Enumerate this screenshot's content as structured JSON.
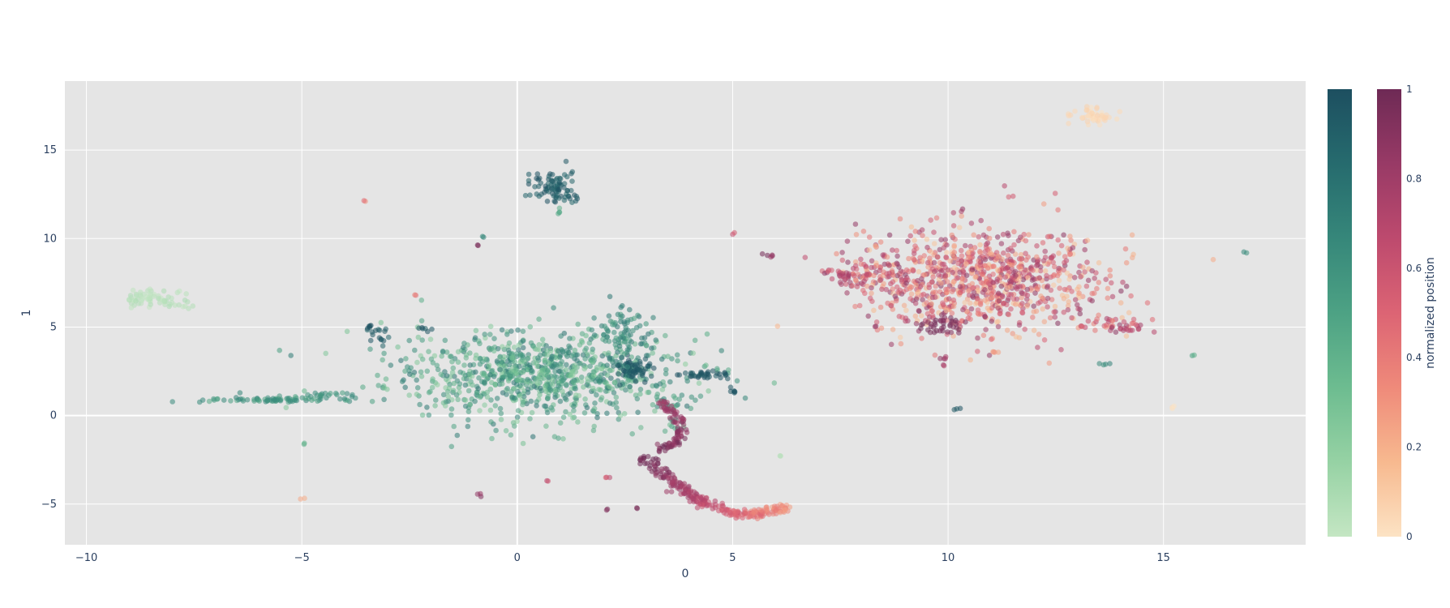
{
  "chart_data": {
    "type": "scatter",
    "title": "",
    "xlabel": "0",
    "ylabel": "1",
    "xlim": [
      -10.5,
      18.3
    ],
    "ylim": [
      -7.3,
      18.9
    ],
    "xticks": [
      -10,
      -5,
      0,
      5,
      10,
      15
    ],
    "yticks": [
      -5,
      0,
      5,
      10,
      15
    ],
    "grid": true,
    "plot_background": "#e5e5e5",
    "grid_color": "#ffffff",
    "series": [
      {
        "colorscale": [
          "#c4e6c3",
          "#96d2a4",
          "#6dbc90",
          "#4da284",
          "#36877a",
          "#266b6e",
          "#1d4f60"
        ],
        "clusters": [
          {
            "x": 0.4,
            "y": 2.3,
            "sx": 1.7,
            "sy": 1.2,
            "n": 900,
            "c": [
              0.2,
              0.8
            ]
          },
          {
            "x": 2.7,
            "y": 2.6,
            "sx": 0.25,
            "sy": 0.3,
            "n": 60,
            "c": [
              0.9,
              1.0
            ]
          },
          {
            "x": 2.5,
            "y": 4.8,
            "sx": 0.3,
            "sy": 0.8,
            "n": 80,
            "c": [
              0.5,
              0.8
            ]
          },
          {
            "x": 0.8,
            "y": 13.0,
            "sx": 0.25,
            "sy": 0.4,
            "n": 70,
            "c": [
              0.85,
              1.0
            ]
          },
          {
            "x": 1.1,
            "y": 12.3,
            "sx": 0.2,
            "sy": 0.15,
            "n": 15,
            "c": [
              0.85,
              1.0
            ]
          },
          {
            "x": -3.2,
            "y": 4.6,
            "sx": 0.15,
            "sy": 0.25,
            "n": 20,
            "c": [
              0.85,
              1.0
            ]
          },
          {
            "x": -2.1,
            "y": 4.9,
            "sx": 0.1,
            "sy": 0.1,
            "n": 6,
            "c": [
              0.85,
              1.0
            ]
          },
          {
            "x": 4.3,
            "y": 2.3,
            "sx": 0.35,
            "sy": 0.1,
            "n": 35,
            "c": [
              0.9,
              1.0
            ]
          },
          {
            "x": 3.5,
            "y": 0.6,
            "sx": 0.3,
            "sy": 0.25,
            "n": 25,
            "c": [
              0.4,
              0.7
            ]
          },
          {
            "x": -5.6,
            "y": 0.9,
            "sx": 0.8,
            "sy": 0.1,
            "n": 80,
            "c": [
              0.45,
              0.7
            ]
          },
          {
            "x": -4.5,
            "y": 1.2,
            "sx": 0.3,
            "sy": 0.06,
            "n": 15,
            "c": [
              0.5,
              0.7
            ]
          },
          {
            "x": -8.4,
            "y": 6.6,
            "sx": 0.35,
            "sy": 0.25,
            "n": 60,
            "c": [
              0.0,
              0.1
            ]
          },
          {
            "x": -7.8,
            "y": 6.2,
            "sx": 0.15,
            "sy": 0.08,
            "n": 8,
            "c": [
              0.0,
              0.1
            ]
          },
          {
            "x": 5.0,
            "y": 1.4,
            "sx": 0.1,
            "sy": 0.08,
            "n": 6,
            "c": [
              0.85,
              1.0
            ]
          },
          {
            "x": 1.0,
            "y": 11.6,
            "sx": 0.05,
            "sy": 0.1,
            "n": 4,
            "c": [
              0.4,
              0.6
            ]
          },
          {
            "x": -0.8,
            "y": 10.1,
            "sx": 0.03,
            "sy": 0.03,
            "n": 2,
            "c": [
              0.6,
              0.7
            ]
          },
          {
            "x": 13.7,
            "y": 2.9,
            "sx": 0.08,
            "sy": 0.05,
            "n": 4,
            "c": [
              0.6,
              0.7
            ]
          },
          {
            "x": 15.7,
            "y": 3.4,
            "sx": 0.03,
            "sy": 0.03,
            "n": 2,
            "c": [
              0.4,
              0.6
            ]
          },
          {
            "x": 16.9,
            "y": 9.2,
            "sx": 0.03,
            "sy": 0.03,
            "n": 2,
            "c": [
              0.6,
              0.7
            ]
          },
          {
            "x": 10.2,
            "y": 0.4,
            "sx": 0.05,
            "sy": 0.05,
            "n": 3,
            "c": [
              0.9,
              1.0
            ]
          },
          {
            "x": -4.9,
            "y": -1.6,
            "sx": 0.03,
            "sy": 0.03,
            "n": 2,
            "c": [
              0.3,
              0.5
            ]
          },
          {
            "x": 6.1,
            "y": -2.3,
            "sx": 0.03,
            "sy": 0.03,
            "n": 2,
            "c": [
              0.0,
              0.2
            ]
          },
          {
            "x": 1.0,
            "y": -1.3,
            "sx": 0.05,
            "sy": 0.1,
            "n": 3,
            "c": [
              0.3,
              0.5
            ]
          },
          {
            "x": 3.6,
            "y": -0.5,
            "sx": 0.1,
            "sy": 0.2,
            "n": 8,
            "c": [
              0.3,
              0.6
            ]
          }
        ]
      },
      {
        "colorscale": [
          "#fce3c4",
          "#f7b98f",
          "#ef8a7a",
          "#dc6474",
          "#bd4a6e",
          "#983a66",
          "#6e2a55"
        ],
        "clusters": [
          {
            "x": 10.8,
            "y": 7.6,
            "sx": 1.4,
            "sy": 1.5,
            "n": 900,
            "c": [
              0.1,
              0.9
            ]
          },
          {
            "x": 8.4,
            "y": 8.0,
            "sx": 0.6,
            "sy": 0.5,
            "n": 80,
            "c": [
              0.2,
              0.9
            ]
          },
          {
            "x": 7.6,
            "y": 8.0,
            "sx": 0.3,
            "sy": 0.2,
            "n": 20,
            "c": [
              0.5,
              0.9
            ]
          },
          {
            "x": 9.8,
            "y": 5.1,
            "sx": 0.2,
            "sy": 0.25,
            "n": 40,
            "c": [
              0.9,
              1.0
            ]
          },
          {
            "x": 13.8,
            "y": 5.2,
            "sx": 0.4,
            "sy": 0.2,
            "n": 30,
            "c": [
              0.3,
              0.8
            ]
          },
          {
            "x": 14.2,
            "y": 4.9,
            "sx": 0.3,
            "sy": 0.1,
            "n": 15,
            "c": [
              0.6,
              0.9
            ]
          },
          {
            "x": 13.4,
            "y": 16.9,
            "sx": 0.25,
            "sy": 0.2,
            "n": 50,
            "c": [
              0.0,
              0.08
            ]
          },
          {
            "x": 9.9,
            "y": 3.1,
            "sx": 0.1,
            "sy": 0.15,
            "n": 6,
            "c": [
              0.7,
              0.9
            ]
          },
          {
            "x": 11.1,
            "y": 3.6,
            "sx": 0.08,
            "sy": 0.05,
            "n": 4,
            "c": [
              0.2,
              0.4
            ]
          },
          {
            "x": 5.9,
            "y": 9.1,
            "sx": 0.1,
            "sy": 0.05,
            "n": 5,
            "c": [
              0.8,
              1.0
            ]
          },
          {
            "x": 5.0,
            "y": 10.3,
            "sx": 0.03,
            "sy": 0.03,
            "n": 2,
            "c": [
              0.5,
              0.7
            ]
          },
          {
            "x": 11.4,
            "y": 12.4,
            "sx": 0.05,
            "sy": 0.05,
            "n": 2,
            "c": [
              0.4,
              0.6
            ]
          },
          {
            "x": -3.5,
            "y": 12.1,
            "sx": 0.03,
            "sy": 0.03,
            "n": 2,
            "c": [
              0.3,
              0.5
            ]
          },
          {
            "x": -2.4,
            "y": 6.8,
            "sx": 0.03,
            "sy": 0.03,
            "n": 2,
            "c": [
              0.3,
              0.5
            ]
          },
          {
            "x": -0.9,
            "y": 9.6,
            "sx": 0.03,
            "sy": 0.03,
            "n": 2,
            "c": [
              0.8,
              1.0
            ]
          },
          {
            "x": -5.0,
            "y": -4.7,
            "sx": 0.03,
            "sy": 0.03,
            "n": 2,
            "c": [
              0.2,
              0.4
            ]
          },
          {
            "x": -0.9,
            "y": -4.5,
            "sx": 0.05,
            "sy": 0.05,
            "n": 3,
            "c": [
              0.8,
              1.0
            ]
          },
          {
            "x": 0.7,
            "y": -3.7,
            "sx": 0.03,
            "sy": 0.03,
            "n": 2,
            "c": [
              0.5,
              0.7
            ]
          },
          {
            "x": 2.1,
            "y": -3.5,
            "sx": 0.05,
            "sy": 0.03,
            "n": 3,
            "c": [
              0.5,
              0.7
            ]
          },
          {
            "x": 2.1,
            "y": -5.3,
            "sx": 0.03,
            "sy": 0.03,
            "n": 2,
            "c": [
              0.8,
              1.0
            ]
          },
          {
            "x": 2.8,
            "y": -5.2,
            "sx": 0.03,
            "sy": 0.03,
            "n": 2,
            "c": [
              0.85,
              1.0
            ]
          },
          {
            "x": 15.2,
            "y": 0.5,
            "sx": 0.05,
            "sy": 0.05,
            "n": 3,
            "c": [
              0.0,
              0.1
            ]
          }
        ],
        "arcs": [
          {
            "x": [
              2.9,
              3.4,
              3.9,
              4.4,
              5.0,
              5.6,
              6.2
            ],
            "y": [
              -2.4,
              -3.3,
              -4.3,
              -5.0,
              -5.5,
              -5.6,
              -5.2
            ],
            "n": 260,
            "c": [
              1.0,
              0.3
            ],
            "spread": 0.12
          },
          {
            "x": [
              3.3,
              3.7,
              3.8,
              3.6,
              3.4
            ],
            "y": [
              -1.9,
              -1.6,
              -0.6,
              0.3,
              0.8
            ],
            "n": 90,
            "c": [
              0.95,
              0.8
            ],
            "spread": 0.1
          }
        ]
      }
    ],
    "colorbars": [
      {
        "title": "",
        "ticks": [],
        "range": [
          0,
          1
        ]
      },
      {
        "title": "normalized position",
        "ticks": [
          0,
          0.2,
          0.4,
          0.6,
          0.8,
          1
        ],
        "range": [
          0,
          1
        ]
      }
    ]
  }
}
